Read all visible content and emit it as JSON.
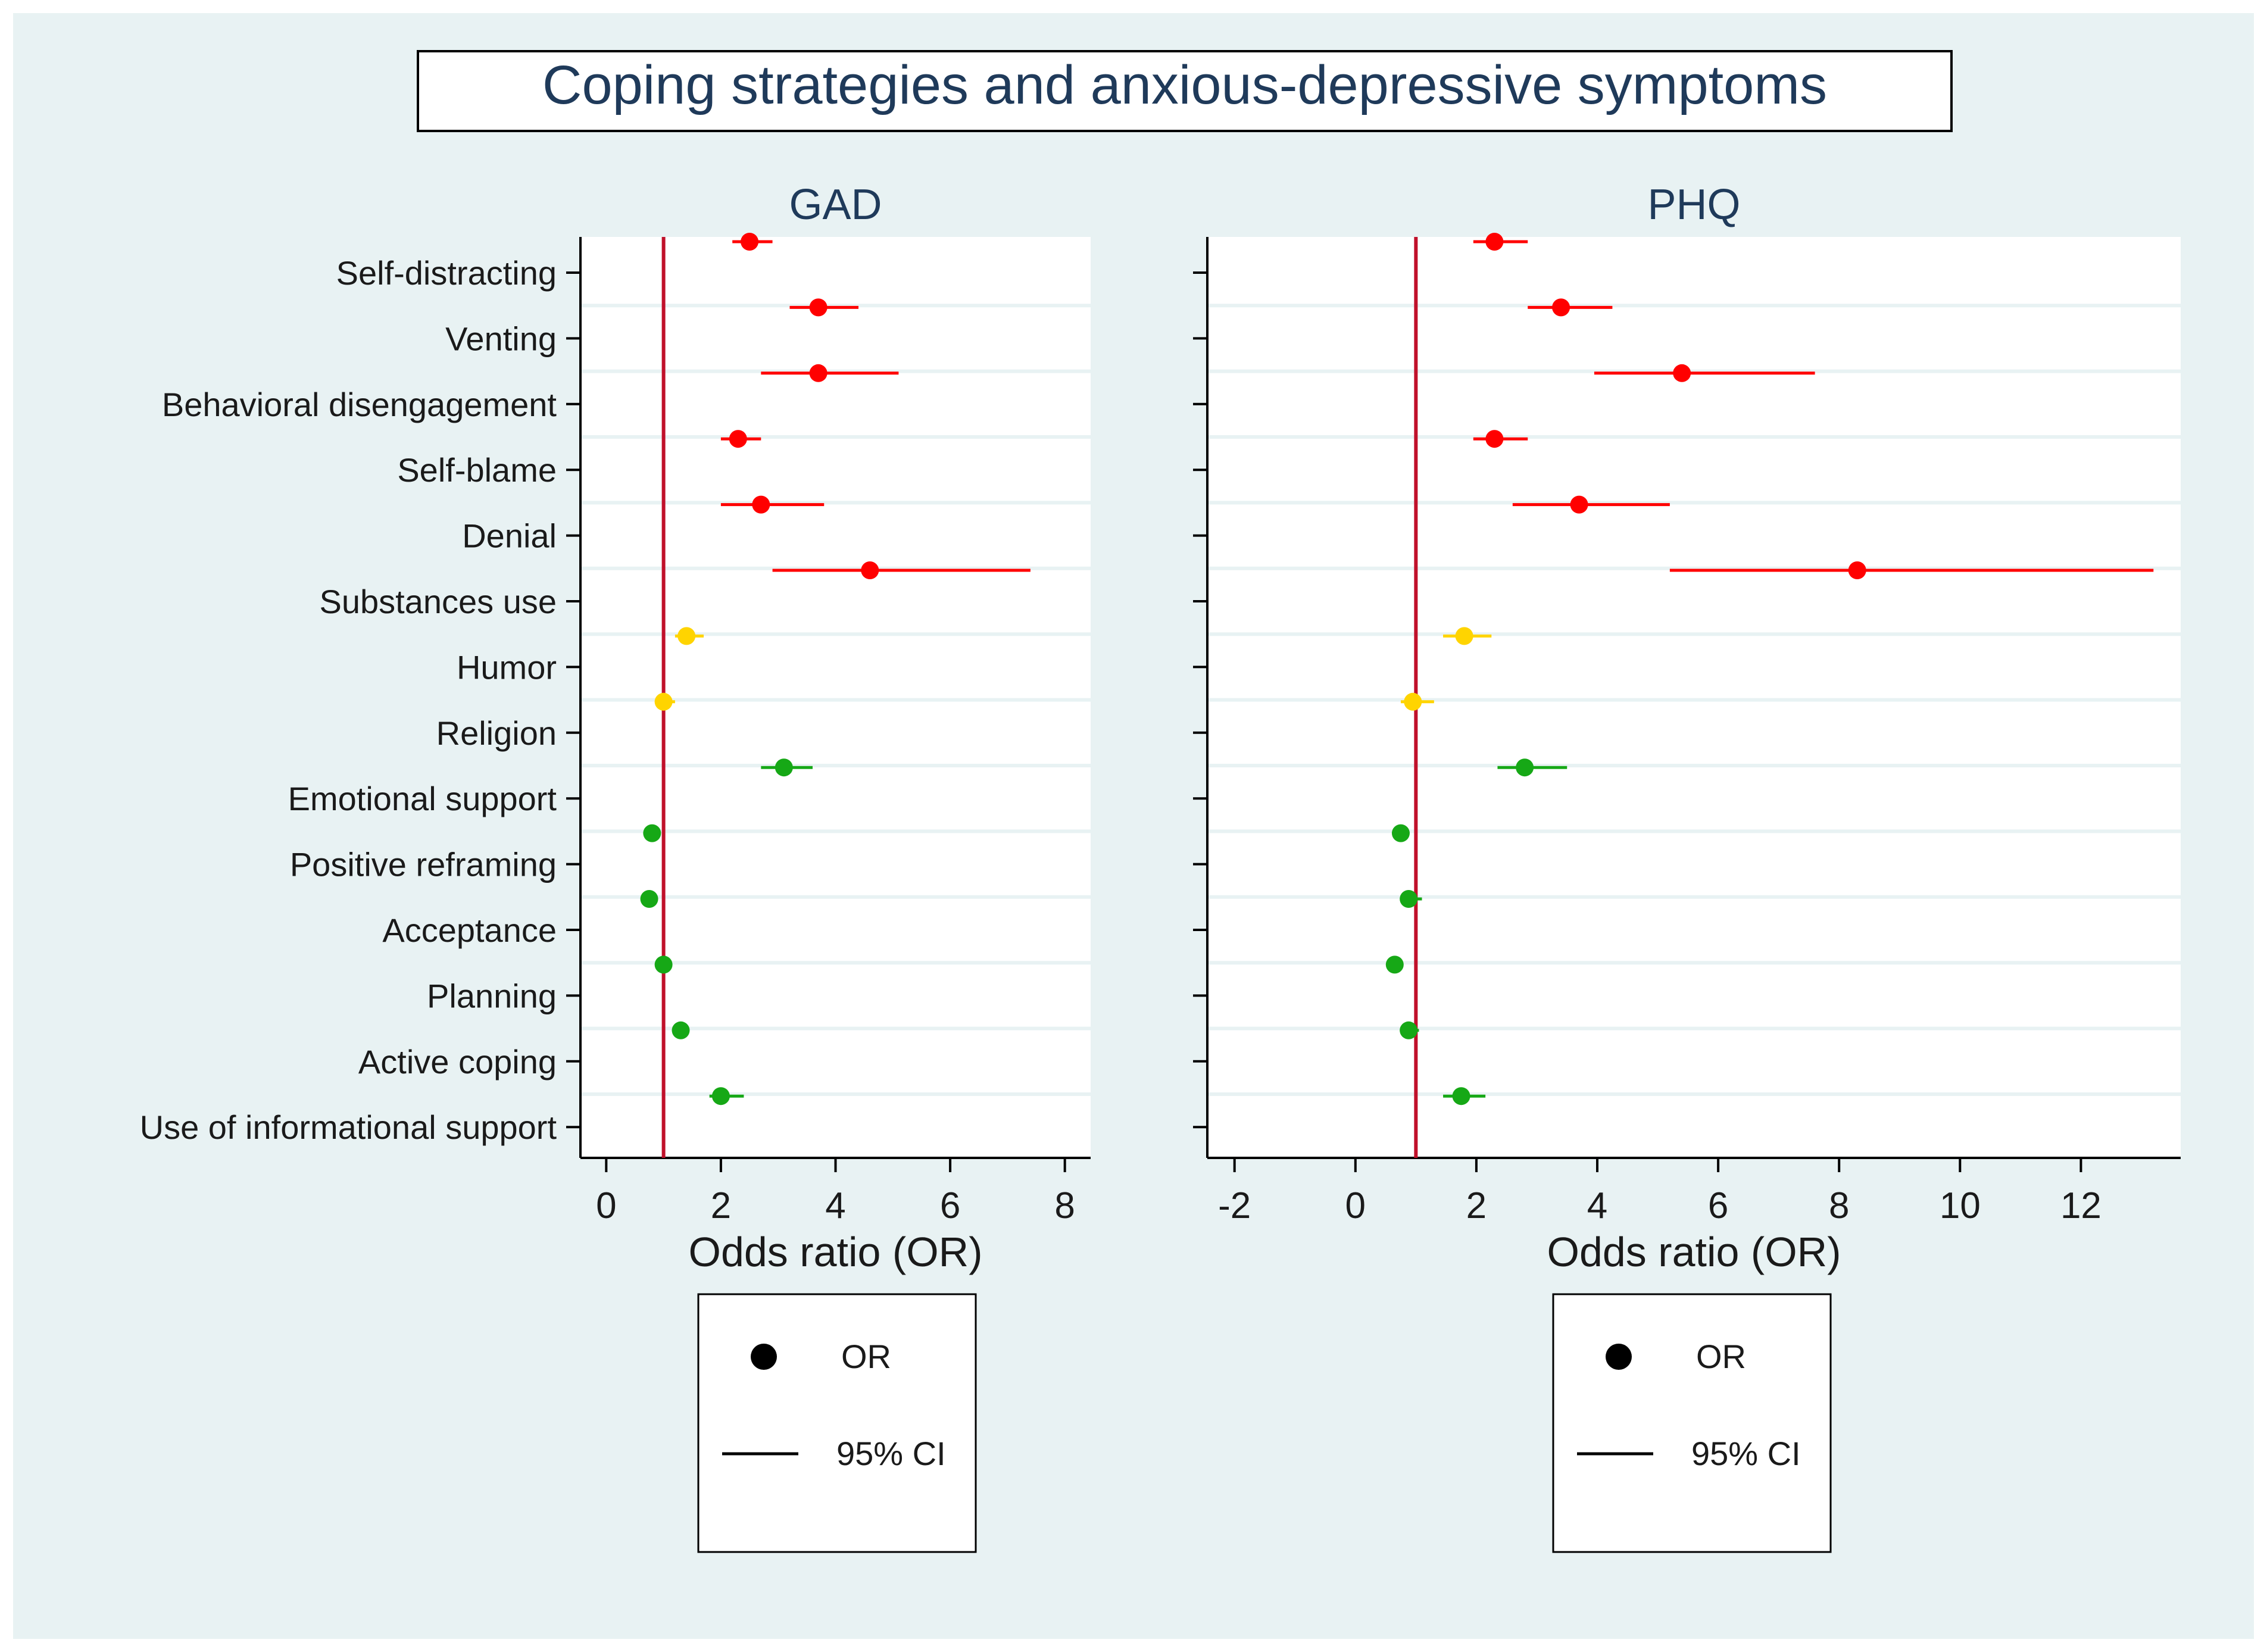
{
  "title": "Coping strategies and anxious-depressive symptoms",
  "colors": {
    "background": "#e8f2f3",
    "plot_bg": "#ffffff",
    "negative": "#ff0000",
    "neutral": "#ffd400",
    "positive": "#16a816",
    "reference_line": "#c0102a",
    "text": "#1a1a1a",
    "title_text": "#1f3a5a"
  },
  "chart_data": [
    {
      "type": "forest",
      "panel": "GAD",
      "title": "GAD",
      "xlabel": "Odds ratio (OR)",
      "xlim": [
        -0.45,
        8.45
      ],
      "xticks": [
        0,
        2,
        4,
        6,
        8
      ],
      "reference_line": 1,
      "categories": [
        "Self-distracting",
        "Venting",
        "Behavioral disengagement",
        "Self-blame",
        "Denial",
        "Substances use",
        "Humor",
        "Religion",
        "Emotional support",
        "Positive reframing",
        "Acceptance",
        "Planning",
        "Active coping",
        "Use of informational support"
      ],
      "group": [
        "negative",
        "negative",
        "negative",
        "negative",
        "negative",
        "negative",
        "neutral",
        "neutral",
        "positive",
        "positive",
        "positive",
        "positive",
        "positive",
        "positive"
      ],
      "or": [
        2.5,
        3.7,
        3.7,
        2.3,
        2.7,
        4.6,
        1.4,
        1.0,
        3.1,
        0.8,
        0.75,
        1.0,
        1.3,
        2.0
      ],
      "ci_low": [
        2.2,
        3.2,
        2.7,
        2.0,
        2.0,
        2.9,
        1.2,
        0.85,
        2.7,
        0.72,
        0.68,
        0.93,
        1.2,
        1.8
      ],
      "ci_high": [
        2.9,
        4.4,
        5.1,
        2.7,
        3.8,
        7.4,
        1.7,
        1.2,
        3.6,
        0.9,
        0.83,
        1.1,
        1.45,
        2.4
      ],
      "legend": {
        "marker_label": "OR",
        "line_label": "95% CI"
      }
    },
    {
      "type": "forest",
      "panel": "PHQ",
      "title": "PHQ",
      "xlabel": "Odds ratio (OR)",
      "xlim": [
        -2.45,
        13.65
      ],
      "xticks": [
        -2,
        0,
        2,
        4,
        6,
        8,
        10,
        12
      ],
      "reference_line": 1,
      "categories": [
        "Self-distracting",
        "Venting",
        "Behavioral disengagement",
        "Self-blame",
        "Denial",
        "Substances use",
        "Humor",
        "Religion",
        "Emotional support",
        "Positive reframing",
        "Acceptance",
        "Planning",
        "Active coping",
        "Use of informational support"
      ],
      "group": [
        "negative",
        "negative",
        "negative",
        "negative",
        "negative",
        "negative",
        "neutral",
        "neutral",
        "positive",
        "positive",
        "positive",
        "positive",
        "positive",
        "positive"
      ],
      "or": [
        2.3,
        3.4,
        5.4,
        2.3,
        3.7,
        8.3,
        1.8,
        0.95,
        2.8,
        0.75,
        0.88,
        0.65,
        0.88,
        1.75
      ],
      "ci_low": [
        1.95,
        2.85,
        3.95,
        1.95,
        2.6,
        5.2,
        1.45,
        0.75,
        2.35,
        0.68,
        0.8,
        0.6,
        0.8,
        1.45
      ],
      "ci_high": [
        2.85,
        4.25,
        7.6,
        2.85,
        5.2,
        13.2,
        2.25,
        1.3,
        3.5,
        0.85,
        1.1,
        0.72,
        1.05,
        2.15
      ],
      "legend": {
        "marker_label": "OR",
        "line_label": "95% CI"
      }
    }
  ]
}
